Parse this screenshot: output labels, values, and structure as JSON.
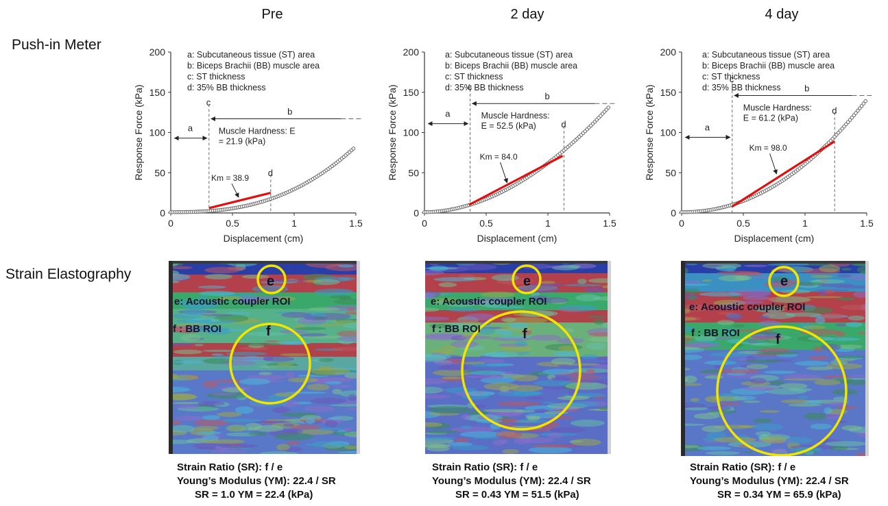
{
  "row_labels": {
    "top": "Push-in Meter",
    "bottom": "Strain Elastography"
  },
  "columns": [
    {
      "title": "Pre",
      "chart": {
        "hardness_line1": "Muscle Hardness: E",
        "hardness_line2": "= 21.9 (kPa)",
        "km": "Km = 38.9"
      },
      "elasto": {
        "roi_e": "e: Acoustic  coupler ROI",
        "roi_f": "f : BB ROI",
        "e": "e",
        "f": "f"
      },
      "summary": {
        "line1": "Strain Ratio (SR):  f / e",
        "line2": "Young’s Modulus (YM):  22.4 / SR",
        "line3": "SR = 1.0   YM = 22.4 (kPa)"
      }
    },
    {
      "title": "2 day",
      "chart": {
        "hardness_line1": "Muscle Hardness:",
        "hardness_line2": "E = 52.5 (kPa)",
        "km": "Km = 84.0"
      },
      "elasto": {
        "roi_e": "e: Acoustic  coupler ROI",
        "roi_f": "f : BB ROI",
        "e": "e",
        "f": "f"
      },
      "summary": {
        "line1": "Strain Ratio (SR):  f / e",
        "line2": "Young’s Modulus (YM):  22.4 / SR",
        "line3": "SR = 0.43    YM = 51.5 (kPa)"
      }
    },
    {
      "title": "4 day",
      "chart": {
        "hardness_line1": "Muscle Hardness:",
        "hardness_line2": "E = 61.2 (kPa)",
        "km": "Km = 98.0"
      },
      "elasto": {
        "roi_e": "e: Acoustic  coupler ROI",
        "roi_f": "f : BB ROI",
        "e": "e",
        "f": "f"
      },
      "summary": {
        "line1": "Strain Ratio (SR):  f / e",
        "line2": "Young’s Modulus (YM):  22.4 / SR",
        "line3": "SR = 0.34 YM = 65.9 (kPa)"
      }
    }
  ],
  "colors": {
    "data_points": "#555555",
    "fit_line": "#e01010",
    "roi_circle": "#f2e600",
    "axis": "#333333"
  },
  "chart_data": [
    {
      "type": "scatter",
      "title": "Pre",
      "xlabel": "Displacement (cm)",
      "ylabel": "Response Force (kPa)",
      "xlim": [
        0,
        1.5
      ],
      "ylim": [
        0,
        200
      ],
      "xticks": [
        0,
        0.5,
        1,
        1.5
      ],
      "xtick_labels": [
        "0",
        "0.5",
        "1",
        "1.5"
      ],
      "yticks": [
        0,
        50,
        100,
        150,
        200
      ],
      "ytick_labels": [
        "0",
        "50",
        "100",
        "150",
        "200"
      ],
      "legend": [
        "a: Subcutaneous tissue (ST) area",
        "b: Biceps Brachii (BB) muscle area",
        "c: ST thickness",
        "d: 35% BB thickness"
      ],
      "series": [
        {
          "x_end": 1.48,
          "y0": 1.0,
          "y_end": 80,
          "exponent": 2.6
        }
      ],
      "fit": {
        "x0": 0.31,
        "y0": 6,
        "x1": 0.81,
        "y1": 25
      },
      "st_thickness": 0.31,
      "bb_thickness_point": 0.81,
      "b_arrow_y": 117,
      "a_arrow_y": 93,
      "point_labels": {
        "a": "a",
        "b": "b",
        "c": "c",
        "d": "d"
      },
      "km_arrow_target": [
        0.55,
        16
      ],
      "grid": false
    },
    {
      "type": "scatter",
      "title": "2 day",
      "xlabel": "Displacement (cm)",
      "ylabel": "Response Force (kPa)",
      "xlim": [
        0,
        1.5
      ],
      "ylim": [
        0,
        200
      ],
      "xticks": [
        0,
        0.5,
        1,
        1.5
      ],
      "xtick_labels": [
        "0",
        "0.5",
        "1",
        "1.5"
      ],
      "yticks": [
        0,
        50,
        100,
        150,
        200
      ],
      "ytick_labels": [
        "0",
        "50",
        "100",
        "150",
        "200"
      ],
      "legend": [
        "a: Subcutaneous  tissue (ST) area",
        "b: Biceps Brachii (BB) muscle area",
        "c: ST thickness",
        "d: 35% BB thickness"
      ],
      "series": [
        {
          "x_end": 1.49,
          "y0": 1.0,
          "y_end": 131,
          "exponent": 1.9
        }
      ],
      "fit": {
        "x0": 0.36,
        "y0": 10,
        "x1": 1.12,
        "y1": 71
      },
      "st_thickness": 0.37,
      "bb_thickness_point": 1.13,
      "b_arrow_y": 136,
      "a_arrow_y": 111,
      "point_labels": {
        "a": "a",
        "b": "b",
        "c": "c",
        "d": "d"
      },
      "km_arrow_target": [
        0.67,
        34
      ],
      "grid": false
    },
    {
      "type": "scatter",
      "title": "4 day",
      "xlabel": "Displacement (cm)",
      "ylabel": "Response Force (kPa)",
      "xlim": [
        0,
        1.5
      ],
      "ylim": [
        0,
        200
      ],
      "xticks": [
        0,
        0.5,
        1,
        1.5
      ],
      "xtick_labels": [
        "0",
        "0.5",
        "1",
        "1.5"
      ],
      "yticks": [
        0,
        50,
        100,
        150,
        200
      ],
      "ytick_labels": [
        "0",
        "50",
        "100",
        "150",
        "200"
      ],
      "legend": [
        "a: Subcutaneous  tissue (ST) area",
        "b: Biceps Brachii (BB) muscle area",
        "c: ST thickness",
        "d: 35% BB thickness"
      ],
      "series": [
        {
          "x_end": 1.49,
          "y0": 1.0,
          "y_end": 139,
          "exponent": 2.1
        }
      ],
      "fit": {
        "x0": 0.41,
        "y0": 8,
        "x1": 1.24,
        "y1": 89
      },
      "st_thickness": 0.41,
      "bb_thickness_point": 1.24,
      "b_arrow_y": 146,
      "a_arrow_y": 94,
      "point_labels": {
        "a": "a",
        "b": "b",
        "c": "c",
        "d": "d"
      },
      "km_arrow_target": [
        0.77,
        45
      ],
      "grid": false
    }
  ]
}
